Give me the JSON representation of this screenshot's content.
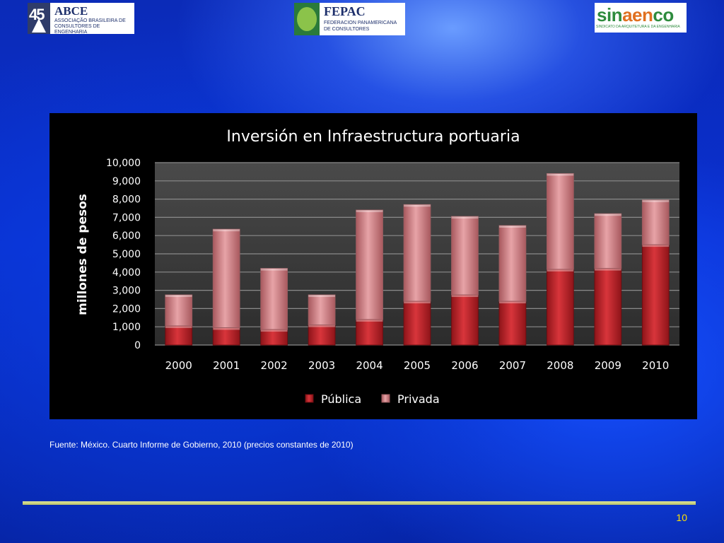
{
  "header": {
    "logos": [
      {
        "name": "ABCE",
        "tagline": "ASSOCIAÇÃO BRASILEIRA DE CONSULTORES DE ENGENHARIA",
        "years": "45"
      },
      {
        "name": "FEPAC",
        "tagline": "FEDERACION PANAMERICANA DE CONSULTORES"
      },
      {
        "name_part1": "sin",
        "name_part2": "aen",
        "name_part3": "co",
        "tagline": "SINDICATO DA ARQUITETURA E DA ENGENHARIA"
      }
    ]
  },
  "chart_data": {
    "type": "bar",
    "stacked": true,
    "title": "Inversión en Infraestructura portuaria",
    "xlabel": "",
    "ylabel": "millones de pesos",
    "ylim": [
      0,
      10000
    ],
    "yticks": [
      "0",
      "1,000",
      "2,000",
      "3,000",
      "4,000",
      "5,000",
      "6,000",
      "7,000",
      "8,000",
      "9,000",
      "10,000"
    ],
    "categories": [
      "2000",
      "2001",
      "2002",
      "2003",
      "2004",
      "2005",
      "2006",
      "2007",
      "2008",
      "2009",
      "2010"
    ],
    "series": [
      {
        "name": "Pública",
        "color": "#c0272d",
        "values": [
          1050,
          950,
          850,
          1100,
          1400,
          2400,
          2750,
          2400,
          4150,
          4200,
          5500
        ]
      },
      {
        "name": "Privada",
        "color": "#d98a8f",
        "values": [
          1700,
          5400,
          3350,
          1650,
          6000,
          5300,
          4300,
          4150,
          5250,
          3000,
          2450
        ]
      }
    ],
    "grid": true,
    "legend_position": "bottom"
  },
  "source_note": "Fuente: México. Cuarto Informe de Gobierno, 2010 (precios constantes de 2010)",
  "page_number": "10",
  "colors": {
    "background": "#0a2fd0",
    "panel": "#000000",
    "plot_area": "#3a3a3a",
    "footer_line": "#c8d07a",
    "page_number": "#ffe000"
  }
}
